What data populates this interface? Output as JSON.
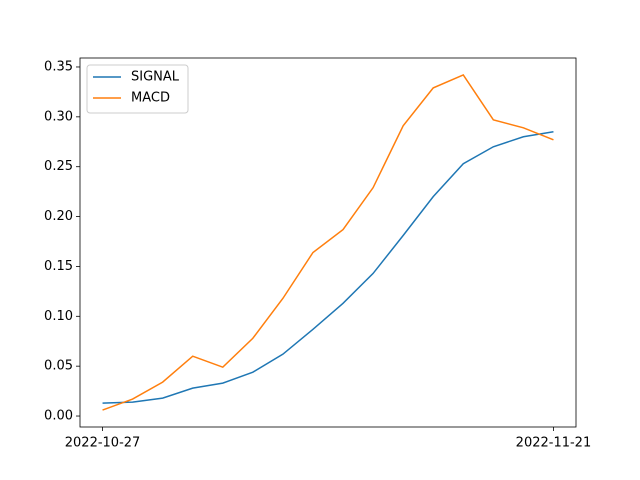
{
  "chart_data": {
    "type": "line",
    "categories": [
      "2022-10-27",
      null,
      null,
      null,
      null,
      null,
      null,
      null,
      null,
      null,
      null,
      null,
      null,
      null,
      null,
      "2022-11-21"
    ],
    "series": [
      {
        "name": "SIGNAL",
        "color": "#1f77b4",
        "values": [
          0.013,
          0.014,
          0.018,
          0.028,
          0.033,
          0.044,
          0.062,
          0.087,
          0.113,
          0.143,
          0.181,
          0.22,
          0.253,
          0.27,
          0.28,
          0.285
        ]
      },
      {
        "name": "MACD",
        "color": "#ff7f0e",
        "values": [
          0.006,
          0.017,
          0.034,
          0.06,
          0.049,
          0.078,
          0.118,
          0.164,
          0.187,
          0.229,
          0.291,
          0.329,
          0.342,
          0.297,
          0.289,
          0.277
        ]
      }
    ],
    "ylim": [
      -0.011,
      0.359
    ],
    "yticks": [
      {
        "value": 0,
        "label": "0.00"
      },
      {
        "value": 0.05,
        "label": "0.05"
      },
      {
        "value": 0.1,
        "label": "0.10"
      },
      {
        "value": 0.15,
        "label": "0.15"
      },
      {
        "value": 0.2,
        "label": "0.20"
      },
      {
        "value": 0.25,
        "label": "0.25"
      },
      {
        "value": 0.3,
        "label": "0.30"
      },
      {
        "value": 0.35,
        "label": "0.35"
      }
    ],
    "grid": false,
    "legend": "upper-left"
  }
}
